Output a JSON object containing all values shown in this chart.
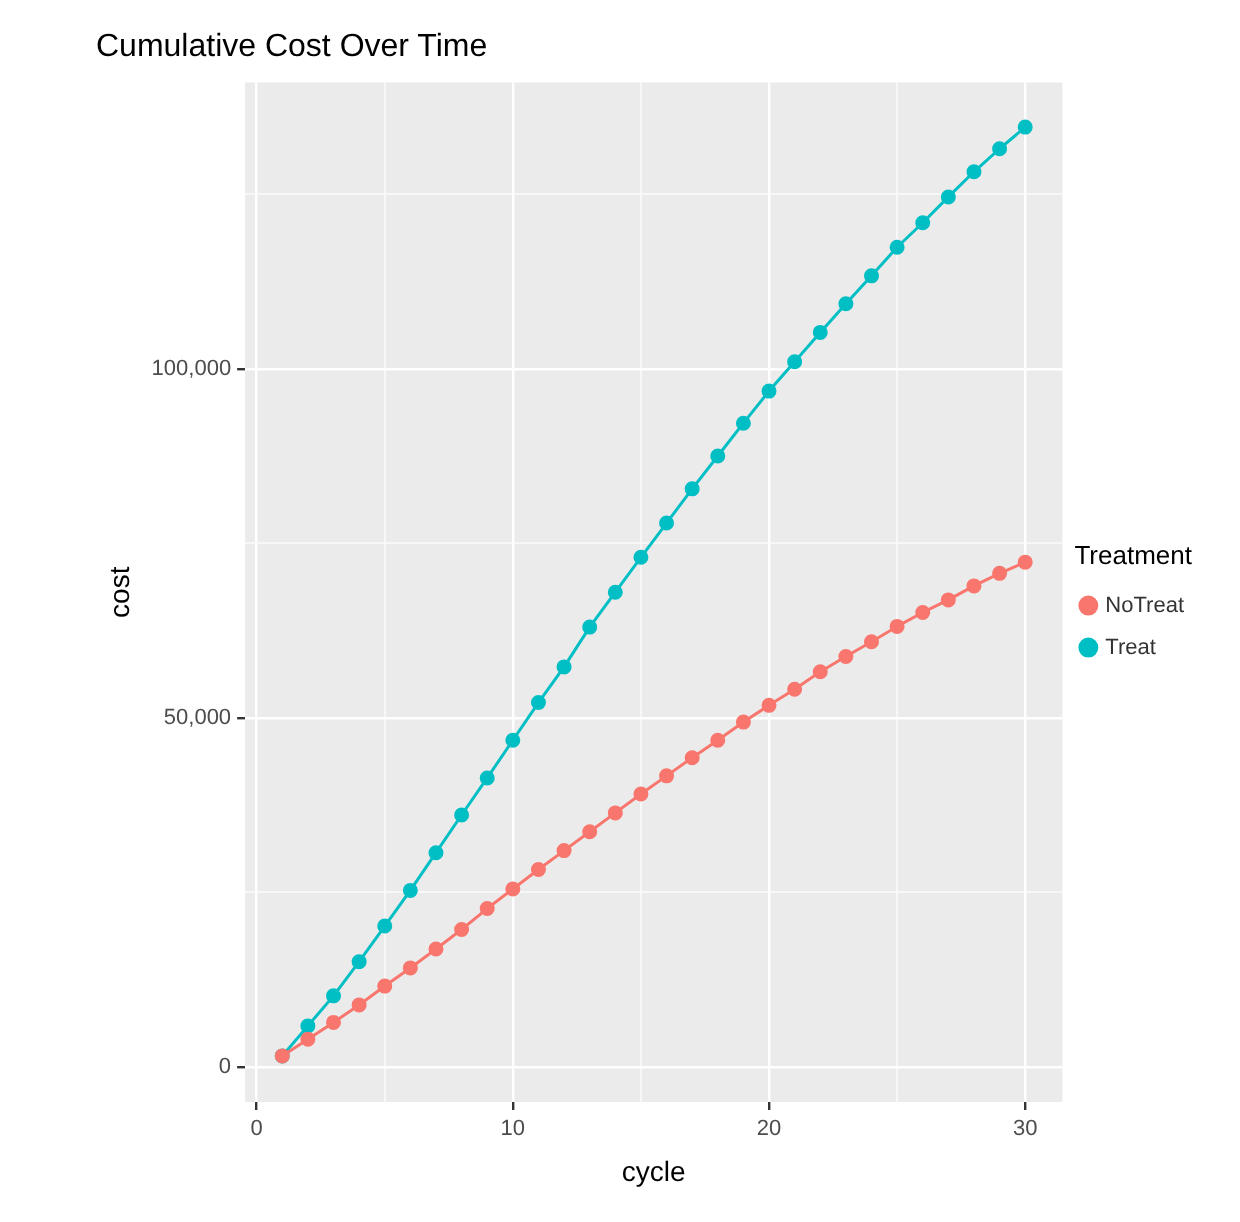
{
  "chart_data": {
    "type": "line",
    "title": "Cumulative Cost Over Time",
    "xlabel": "cycle",
    "ylabel": "cost",
    "legend_title": "Treatment",
    "legend": "right",
    "grid": true,
    "marker": "circle",
    "line_style": "solid",
    "x": [
      1,
      2,
      3,
      4,
      5,
      6,
      7,
      8,
      9,
      10,
      11,
      12,
      13,
      14,
      15,
      16,
      17,
      18,
      19,
      20,
      21,
      22,
      23,
      24,
      25,
      26,
      27,
      28,
      29,
      30
    ],
    "xlim": [
      -0.45,
      31.45
    ],
    "xticks": [
      0,
      {
        "value": 5,
        "label": null
      },
      10,
      {
        "value": 15,
        "label": null
      },
      20,
      {
        "value": 25,
        "label": null
      },
      30
    ],
    "ylim": [
      -5000,
      141000
    ],
    "yticks": [
      {
        "value": 0,
        "label": "0"
      },
      {
        "value": 25000,
        "label": null
      },
      {
        "value": 50000,
        "label": "50,000"
      },
      {
        "value": 75000,
        "label": null
      },
      {
        "value": 100000,
        "label": "100,000"
      },
      {
        "value": 125000,
        "label": null
      }
    ],
    "series": [
      {
        "name": "NoTreat",
        "color": "#f8766d",
        "values": [
          1600,
          4000,
          6400,
          8900,
          11600,
          14200,
          16900,
          19700,
          22700,
          25500,
          28300,
          31000,
          33700,
          36400,
          39100,
          41700,
          44300,
          46800,
          49400,
          51800,
          54100,
          56600,
          58800,
          60900,
          63100,
          65100,
          66900,
          68900,
          70700,
          72300
        ]
      },
      {
        "name": "Treat",
        "color": "#00bfc4",
        "values": [
          1600,
          5900,
          10200,
          15100,
          20200,
          25300,
          30700,
          36100,
          41400,
          46800,
          52200,
          57300,
          63000,
          68000,
          73000,
          77900,
          82800,
          87500,
          92200,
          96800,
          101000,
          105200,
          109300,
          113300,
          117400,
          120900,
          124600,
          128200,
          131500,
          134600
        ]
      }
    ]
  }
}
